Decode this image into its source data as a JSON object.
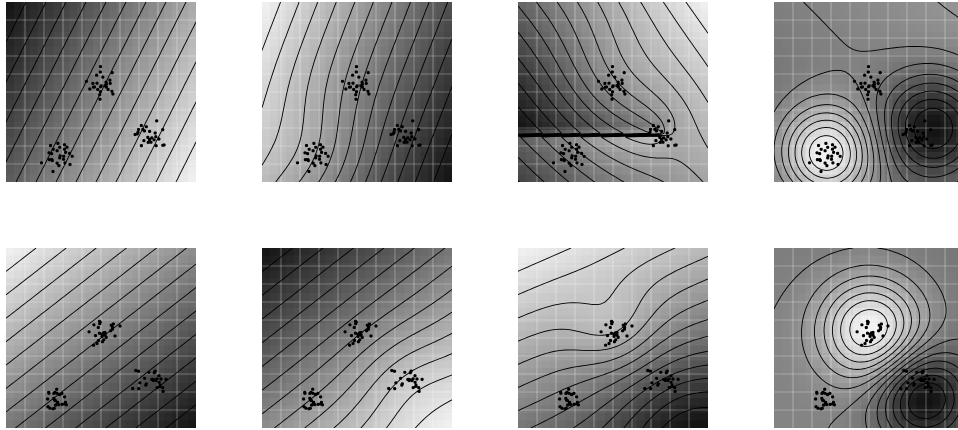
{
  "figure": {
    "description_visible_text": "",
    "panels": [
      {
        "name": "panel-r1-c1",
        "row": 1,
        "col": 1,
        "shading_direction": "light-top-right-to-dark-bottom-left",
        "contour_style": "parallel-diagonal"
      },
      {
        "name": "panel-r1-c2",
        "row": 1,
        "col": 2,
        "shading_direction": "light-bottom-left-to-dark-top-right",
        "contour_style": "curved-diagonal"
      },
      {
        "name": "panel-r1-c3",
        "row": 1,
        "col": 3,
        "shading_direction": "dark-bottom-left-to-light-top-right",
        "contour_style": "bent-around-clusters"
      },
      {
        "name": "panel-r1-c4",
        "row": 1,
        "col": 4,
        "shading_direction": "light-peak-bottom-left-dark-peak-right",
        "contour_style": "dipole-circles"
      },
      {
        "name": "panel-r2-c1",
        "row": 2,
        "col": 1,
        "shading_direction": "light-top-left-to-dark-bottom-right",
        "contour_style": "parallel-diagonal"
      },
      {
        "name": "panel-r2-c2",
        "row": 2,
        "col": 2,
        "shading_direction": "dark-top-left-to-light-bottom-right",
        "contour_style": "curved-diagonal"
      },
      {
        "name": "panel-r2-c3",
        "row": 2,
        "col": 3,
        "shading_direction": "light-top-to-dark-bottom-right",
        "contour_style": "bent-around-clusters"
      },
      {
        "name": "panel-r2-c4",
        "row": 2,
        "col": 4,
        "shading_direction": "light-peak-top-center-dark-peak-bottom-right",
        "contour_style": "dipole-circles"
      }
    ],
    "colors": {
      "light": "#f4f4f4",
      "dark": "#111111",
      "contour": "#000000",
      "grid": "#ffffff",
      "points": "#000000"
    }
  }
}
